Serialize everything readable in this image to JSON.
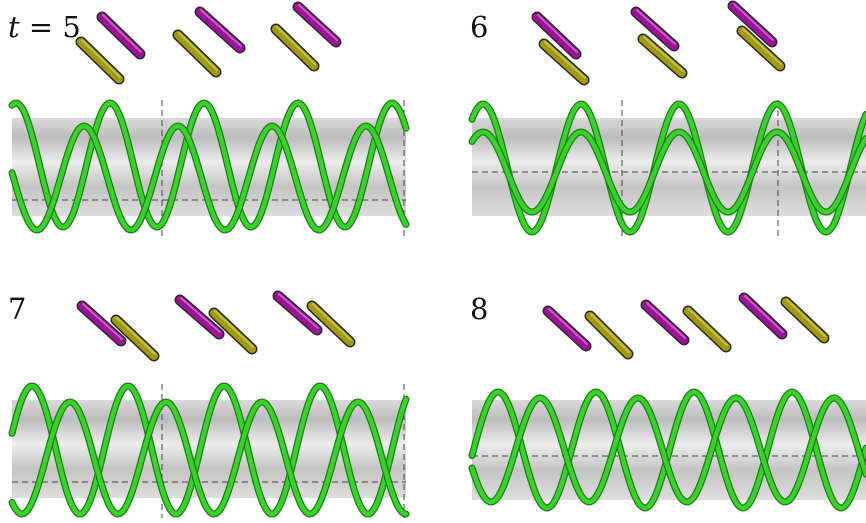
{
  "panels": [
    {
      "label": "t = 5",
      "label_var": "t",
      "label_eq": " = ",
      "label_num": "5"
    },
    {
      "label": "6"
    },
    {
      "label": "7"
    },
    {
      "label": "8"
    }
  ],
  "colors": {
    "rod_magenta": "#a0109c",
    "rod_olive": "#a39a07",
    "helix_green": "#39d22a",
    "helix_dark": "#1f7d18",
    "band_gray": "#cfcfcf"
  }
}
